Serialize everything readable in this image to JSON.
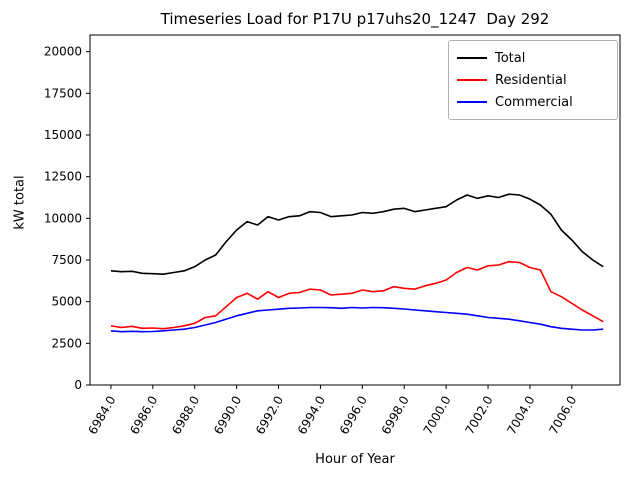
{
  "chart_data": {
    "type": "line",
    "title": "Timeseries Load for P17U p17uhs20_1247  Day 292",
    "xlabel": "Hour of Year",
    "ylabel": "kW total",
    "xlim": [
      6983.0,
      7008.3
    ],
    "ylim": [
      0,
      21000
    ],
    "grid": false,
    "legend_position": "upper right",
    "xticks": [
      6984,
      6986,
      6988,
      6990,
      6992,
      6994,
      6996,
      6998,
      7000,
      7002,
      7004,
      7006
    ],
    "xtick_labels": [
      "6984.0",
      "6986.0",
      "6988.0",
      "6990.0",
      "6992.0",
      "6994.0",
      "6996.0",
      "6998.0",
      "7000.0",
      "7002.0",
      "7004.0",
      "7006.0"
    ],
    "yticks": [
      0,
      2500,
      5000,
      7500,
      10000,
      12500,
      15000,
      17500,
      20000
    ],
    "ytick_labels": [
      "0",
      "2500",
      "5000",
      "7500",
      "10000",
      "12500",
      "15000",
      "17500",
      "20000"
    ],
    "x_start": 6984.0,
    "x_step": 0.5,
    "series": [
      {
        "name": "Total",
        "color": "#000000",
        "values": [
          6850,
          6800,
          6820,
          6700,
          6680,
          6650,
          6750,
          6850,
          7100,
          7500,
          7800,
          8600,
          9300,
          9800,
          9600,
          10100,
          9900,
          10100,
          10150,
          10400,
          10350,
          10100,
          10150,
          10200,
          10350,
          10300,
          10400,
          10550,
          10600,
          10400,
          10500,
          10600,
          10700,
          11100,
          11400,
          11200,
          11350,
          11250,
          11450,
          11400,
          11150,
          10800,
          10250,
          9300,
          8700,
          8000,
          7500,
          7100
        ]
      },
      {
        "name": "Residential",
        "color": "#ff0000",
        "values": [
          3550,
          3450,
          3520,
          3400,
          3420,
          3380,
          3450,
          3550,
          3700,
          4050,
          4150,
          4700,
          5250,
          5500,
          5150,
          5600,
          5250,
          5500,
          5550,
          5750,
          5700,
          5400,
          5450,
          5500,
          5700,
          5600,
          5650,
          5900,
          5800,
          5750,
          5950,
          6100,
          6300,
          6750,
          7050,
          6900,
          7150,
          7200,
          7400,
          7350,
          7050,
          6900,
          5600,
          5300,
          4900,
          4500,
          4150,
          3800
        ]
      },
      {
        "name": "Commercial",
        "color": "#0000ff",
        "values": [
          3250,
          3200,
          3220,
          3200,
          3210,
          3250,
          3300,
          3350,
          3450,
          3600,
          3750,
          3950,
          4150,
          4300,
          4450,
          4500,
          4550,
          4600,
          4620,
          4650,
          4650,
          4640,
          4600,
          4650,
          4620,
          4650,
          4640,
          4600,
          4560,
          4500,
          4450,
          4400,
          4350,
          4300,
          4250,
          4150,
          4050,
          4000,
          3950,
          3850,
          3750,
          3650,
          3500,
          3400,
          3350,
          3300,
          3300,
          3350
        ]
      }
    ]
  }
}
